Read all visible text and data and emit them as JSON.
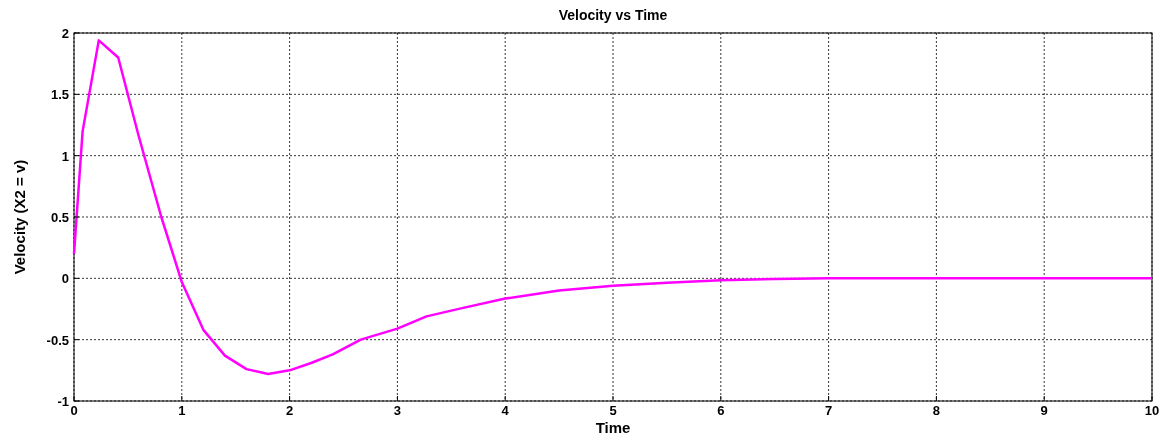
{
  "chart_data": {
    "type": "line",
    "title": "Velocity vs Time",
    "xlabel": "Time",
    "ylabel": "Velocity (X2 = v)",
    "series": [
      {
        "color": "#ff00ff",
        "x": [
          0,
          0.08,
          0.23,
          0.41,
          0.6,
          0.81,
          1.0,
          1.2,
          1.4,
          1.6,
          1.8,
          2.0,
          2.2,
          2.4,
          2.66,
          3.0,
          3.27,
          3.59,
          4.0,
          4.5,
          5.0,
          5.5,
          6.0,
          6.5,
          7.0,
          8.0,
          9.0,
          10.0
        ],
        "values": [
          0.2,
          1.2,
          1.94,
          1.8,
          1.16,
          0.5,
          -0.03,
          -0.42,
          -0.63,
          -0.74,
          -0.78,
          -0.75,
          -0.69,
          -0.62,
          -0.5,
          -0.41,
          -0.31,
          -0.245,
          -0.165,
          -0.1,
          -0.06,
          -0.035,
          -0.016,
          -0.006,
          0,
          0,
          0,
          0
        ]
      }
    ],
    "xlim": [
      0,
      10
    ],
    "xticks": [
      0,
      1,
      2,
      3,
      4,
      5,
      6,
      7,
      8,
      9,
      10
    ],
    "ylim": [
      -1,
      2
    ],
    "yticks": [
      -1,
      -0.5,
      0,
      0.5,
      1,
      1.5,
      2
    ],
    "grid": true,
    "line_style": "solid"
  }
}
